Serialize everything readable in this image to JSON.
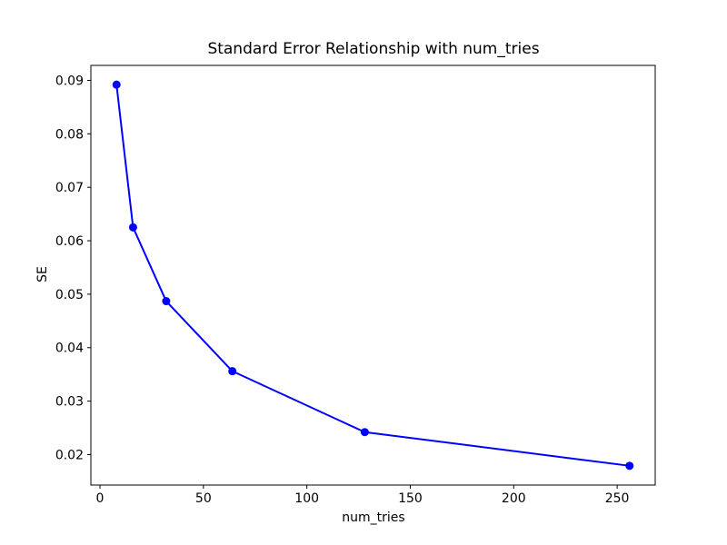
{
  "figure": {
    "background_color": "#ffffff",
    "text_color": "#000000"
  },
  "chart_data": {
    "type": "line",
    "title": "Standard Error Relationship with num_tries",
    "xlabel": "num_tries",
    "ylabel": "SE",
    "x": [
      8,
      16,
      32,
      64,
      128,
      256
    ],
    "y": [
      0.0892,
      0.0625,
      0.0487,
      0.0356,
      0.0242,
      0.0179
    ],
    "line_color": "#0000ff",
    "marker": "circle",
    "marker_color": "#0000ff",
    "xlim": [
      -4.4,
      268.4
    ],
    "ylim": [
      0.0143,
      0.0928
    ],
    "x_ticks": [
      0,
      50,
      100,
      150,
      200,
      250
    ],
    "x_tick_labels": [
      "0",
      "50",
      "100",
      "150",
      "200",
      "250"
    ],
    "y_ticks": [
      0.02,
      0.03,
      0.04,
      0.05,
      0.06,
      0.07,
      0.08,
      0.09
    ],
    "y_tick_labels": [
      "0.02",
      "0.03",
      "0.04",
      "0.05",
      "0.06",
      "0.07",
      "0.08",
      "0.09"
    ],
    "grid": false,
    "legend_position": "none"
  }
}
